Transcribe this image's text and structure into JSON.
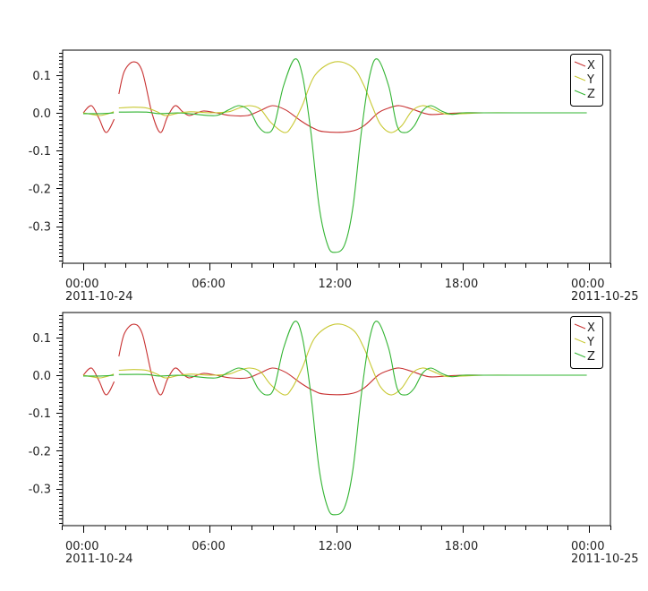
{
  "chart_data": [
    {
      "type": "line",
      "title": "",
      "xlabel": "",
      "ylabel": "",
      "x_unit": "hours since 2011-10-24 00:00",
      "xlim": [
        -1,
        25
      ],
      "ylim": [
        -0.398,
        0.166
      ],
      "x_ticks": [
        {
          "hour": 0,
          "time": "00:00",
          "date": "2011-10-24"
        },
        {
          "hour": 6,
          "time": "06:00",
          "date": ""
        },
        {
          "hour": 12,
          "time": "12:00",
          "date": ""
        },
        {
          "hour": 18,
          "time": "18:00",
          "date": ""
        },
        {
          "hour": 24,
          "time": "00:00",
          "date": "2011-10-25"
        }
      ],
      "y_ticks": [
        {
          "value": 0.1,
          "label": "0.1"
        },
        {
          "value": 0.0,
          "label": "0.0"
        },
        {
          "value": -0.1,
          "label": "-0.1"
        },
        {
          "value": -0.2,
          "label": "-0.2"
        },
        {
          "value": -0.3,
          "label": "-0.3"
        }
      ],
      "grid": false,
      "legend": "top-right",
      "series": [
        {
          "name": "X",
          "color": "#c83232",
          "points": [
            [
              0,
              0
            ],
            [
              0.39,
              0.019
            ],
            [
              0.75,
              -0.015
            ],
            [
              1.09,
              -0.052
            ],
            [
              1.47,
              -0.017
            ],
            null,
            [
              1.69,
              0.05
            ],
            [
              1.95,
              0.11
            ],
            [
              2.39,
              0.135
            ],
            [
              2.8,
              0.11
            ],
            [
              3.26,
              0.0
            ],
            [
              3.66,
              -0.052
            ],
            [
              4.0,
              -0.01
            ],
            [
              4.36,
              0.019
            ],
            [
              4.7,
              0.004
            ],
            [
              5.02,
              -0.007
            ],
            [
              5.4,
              0.0
            ],
            [
              5.73,
              0.005
            ],
            [
              6.3,
              0.0
            ],
            [
              7.0,
              -0.007
            ],
            [
              7.8,
              -0.007
            ],
            [
              8.4,
              0.006
            ],
            [
              8.98,
              0.019
            ],
            [
              9.6,
              0.008
            ],
            [
              10.3,
              -0.02
            ],
            [
              10.9,
              -0.04
            ],
            [
              11.44,
              -0.05
            ],
            [
              12.6,
              -0.05
            ],
            [
              13.3,
              -0.035
            ],
            [
              14.0,
              0.0
            ],
            [
              14.5,
              0.013
            ],
            [
              15.0,
              0.019
            ],
            [
              15.6,
              0.01
            ],
            [
              16.4,
              -0.004
            ],
            [
              17.2,
              -0.002
            ],
            [
              18.0,
              0.0
            ],
            [
              19.0,
              0.0
            ],
            [
              20.5,
              0.0
            ]
          ]
        },
        {
          "name": "Y",
          "color": "#c8c832",
          "points": [
            [
              0,
              0
            ],
            [
              0.4,
              -0.004
            ],
            [
              0.8,
              -0.007
            ],
            [
              1.2,
              -0.002
            ],
            [
              1.45,
              0.003
            ],
            null,
            [
              1.69,
              0.013
            ],
            [
              2.4,
              0.015
            ],
            [
              3.0,
              0.013
            ],
            [
              3.5,
              0.003
            ],
            [
              3.9,
              -0.007
            ],
            [
              4.5,
              -0.001
            ],
            [
              5.1,
              0.003
            ],
            [
              6.0,
              0.0
            ],
            [
              6.9,
              0.003
            ],
            [
              7.4,
              0.013
            ],
            [
              7.9,
              0.019
            ],
            [
              8.4,
              0.01
            ],
            [
              8.9,
              -0.025
            ],
            [
              9.54,
              -0.052
            ],
            [
              9.9,
              -0.035
            ],
            [
              10.4,
              0.02
            ],
            [
              11.0,
              0.1
            ],
            [
              11.94,
              0.135
            ],
            [
              12.8,
              0.12
            ],
            [
              13.3,
              0.075
            ],
            [
              13.7,
              0.02
            ],
            [
              14.1,
              -0.03
            ],
            [
              14.6,
              -0.052
            ],
            [
              15.1,
              -0.035
            ],
            [
              15.6,
              0.005
            ],
            [
              16.1,
              0.019
            ],
            [
              16.6,
              0.01
            ],
            [
              17.2,
              -0.003
            ],
            [
              18.0,
              -0.002
            ],
            [
              19.0,
              0.0
            ],
            [
              20.5,
              0.0
            ]
          ]
        },
        {
          "name": "Z",
          "color": "#32b432",
          "points": [
            [
              0,
              -0.002
            ],
            [
              0.8,
              -0.002
            ],
            [
              1.45,
              0.0
            ],
            null,
            [
              1.69,
              0.002
            ],
            [
              3.0,
              0.002
            ],
            [
              3.6,
              -0.002
            ],
            [
              4.5,
              0.0
            ],
            [
              5.2,
              -0.003
            ],
            [
              6.3,
              -0.007
            ],
            [
              6.9,
              0.008
            ],
            [
              7.4,
              0.019
            ],
            [
              7.9,
              0.005
            ],
            [
              8.3,
              -0.035
            ],
            [
              8.68,
              -0.052
            ],
            [
              9.05,
              -0.035
            ],
            [
              9.5,
              0.07
            ],
            [
              10.03,
              0.142
            ],
            [
              10.4,
              0.1
            ],
            [
              10.8,
              -0.05
            ],
            [
              11.2,
              -0.25
            ],
            [
              11.6,
              -0.35
            ],
            [
              11.93,
              -0.369
            ],
            [
              12.4,
              -0.35
            ],
            [
              12.8,
              -0.25
            ],
            [
              13.2,
              -0.05
            ],
            [
              13.6,
              0.1
            ],
            [
              13.97,
              0.142
            ],
            [
              14.5,
              0.07
            ],
            [
              14.9,
              -0.035
            ],
            [
              15.3,
              -0.052
            ],
            [
              15.7,
              -0.035
            ],
            [
              16.1,
              0.005
            ],
            [
              16.5,
              0.019
            ],
            [
              17.0,
              0.005
            ],
            [
              17.5,
              -0.004
            ],
            [
              18.0,
              0.0
            ],
            [
              19.0,
              0.0
            ],
            [
              23.9,
              0.0
            ]
          ]
        }
      ]
    },
    {
      "type": "line",
      "title": "",
      "xlabel": "",
      "ylabel": "",
      "x_unit": "hours since 2011-10-24 00:00",
      "xlim": [
        -1,
        25
      ],
      "ylim": [
        -0.398,
        0.166
      ],
      "x_ticks": [
        {
          "hour": 0,
          "time": "00:00",
          "date": "2011-10-24"
        },
        {
          "hour": 6,
          "time": "06:00",
          "date": ""
        },
        {
          "hour": 12,
          "time": "12:00",
          "date": ""
        },
        {
          "hour": 18,
          "time": "18:00",
          "date": ""
        },
        {
          "hour": 24,
          "time": "00:00",
          "date": "2011-10-25"
        }
      ],
      "y_ticks": [
        {
          "value": 0.1,
          "label": "0.1"
        },
        {
          "value": 0.0,
          "label": "0.0"
        },
        {
          "value": -0.1,
          "label": "-0.1"
        },
        {
          "value": -0.2,
          "label": "-0.2"
        },
        {
          "value": -0.3,
          "label": "-0.3"
        }
      ],
      "grid": false,
      "legend": "top-right",
      "series": [
        {
          "name": "X",
          "color": "#c83232",
          "points": [
            [
              0,
              0
            ],
            [
              0.39,
              0.019
            ],
            [
              0.75,
              -0.015
            ],
            [
              1.09,
              -0.052
            ],
            [
              1.47,
              -0.017
            ],
            null,
            [
              1.69,
              0.05
            ],
            [
              1.95,
              0.11
            ],
            [
              2.39,
              0.135
            ],
            [
              2.8,
              0.11
            ],
            [
              3.26,
              0.0
            ],
            [
              3.66,
              -0.052
            ],
            [
              4.0,
              -0.01
            ],
            [
              4.36,
              0.019
            ],
            [
              4.7,
              0.004
            ],
            [
              5.02,
              -0.007
            ],
            [
              5.4,
              0.0
            ],
            [
              5.73,
              0.005
            ],
            [
              6.3,
              0.0
            ],
            [
              7.0,
              -0.007
            ],
            [
              7.8,
              -0.007
            ],
            [
              8.4,
              0.006
            ],
            [
              8.98,
              0.019
            ],
            [
              9.6,
              0.008
            ],
            [
              10.3,
              -0.02
            ],
            [
              10.9,
              -0.04
            ],
            [
              11.44,
              -0.05
            ],
            [
              12.6,
              -0.05
            ],
            [
              13.3,
              -0.035
            ],
            [
              14.0,
              0.0
            ],
            [
              14.5,
              0.013
            ],
            [
              15.0,
              0.019
            ],
            [
              15.6,
              0.01
            ],
            [
              16.4,
              -0.004
            ],
            [
              17.2,
              -0.002
            ],
            [
              18.0,
              0.0
            ],
            [
              19.0,
              0.0
            ],
            [
              20.5,
              0.0
            ]
          ]
        },
        {
          "name": "Y",
          "color": "#c8c832",
          "points": [
            [
              0,
              0
            ],
            [
              0.4,
              -0.004
            ],
            [
              0.8,
              -0.007
            ],
            [
              1.2,
              -0.002
            ],
            [
              1.45,
              0.003
            ],
            null,
            [
              1.69,
              0.013
            ],
            [
              2.4,
              0.015
            ],
            [
              3.0,
              0.013
            ],
            [
              3.5,
              0.003
            ],
            [
              3.9,
              -0.007
            ],
            [
              4.5,
              -0.001
            ],
            [
              5.1,
              0.003
            ],
            [
              6.0,
              0.0
            ],
            [
              6.9,
              0.003
            ],
            [
              7.4,
              0.013
            ],
            [
              7.9,
              0.019
            ],
            [
              8.4,
              0.01
            ],
            [
              8.9,
              -0.025
            ],
            [
              9.54,
              -0.052
            ],
            [
              9.9,
              -0.035
            ],
            [
              10.4,
              0.02
            ],
            [
              11.0,
              0.1
            ],
            [
              11.94,
              0.135
            ],
            [
              12.8,
              0.12
            ],
            [
              13.3,
              0.075
            ],
            [
              13.7,
              0.02
            ],
            [
              14.1,
              -0.03
            ],
            [
              14.6,
              -0.052
            ],
            [
              15.1,
              -0.035
            ],
            [
              15.6,
              0.005
            ],
            [
              16.1,
              0.019
            ],
            [
              16.6,
              0.01
            ],
            [
              17.2,
              -0.003
            ],
            [
              18.0,
              -0.002
            ],
            [
              19.0,
              0.0
            ],
            [
              20.5,
              0.0
            ]
          ]
        },
        {
          "name": "Z",
          "color": "#32b432",
          "points": [
            [
              0,
              -0.002
            ],
            [
              0.8,
              -0.002
            ],
            [
              1.45,
              0.0
            ],
            null,
            [
              1.69,
              0.002
            ],
            [
              3.0,
              0.002
            ],
            [
              3.6,
              -0.002
            ],
            [
              4.5,
              0.0
            ],
            [
              5.2,
              -0.003
            ],
            [
              6.3,
              -0.007
            ],
            [
              6.9,
              0.008
            ],
            [
              7.4,
              0.019
            ],
            [
              7.9,
              0.005
            ],
            [
              8.3,
              -0.035
            ],
            [
              8.68,
              -0.052
            ],
            [
              9.05,
              -0.035
            ],
            [
              9.5,
              0.07
            ],
            [
              10.03,
              0.142
            ],
            [
              10.4,
              0.1
            ],
            [
              10.8,
              -0.05
            ],
            [
              11.2,
              -0.25
            ],
            [
              11.6,
              -0.35
            ],
            [
              11.93,
              -0.369
            ],
            [
              12.4,
              -0.35
            ],
            [
              12.8,
              -0.25
            ],
            [
              13.2,
              -0.05
            ],
            [
              13.6,
              0.1
            ],
            [
              13.97,
              0.142
            ],
            [
              14.5,
              0.07
            ],
            [
              14.9,
              -0.035
            ],
            [
              15.3,
              -0.052
            ],
            [
              15.7,
              -0.035
            ],
            [
              16.1,
              0.005
            ],
            [
              16.5,
              0.019
            ],
            [
              17.0,
              0.005
            ],
            [
              17.5,
              -0.004
            ],
            [
              18.0,
              0.0
            ],
            [
              19.0,
              0.0
            ],
            [
              23.9,
              0.0
            ]
          ]
        }
      ]
    }
  ]
}
